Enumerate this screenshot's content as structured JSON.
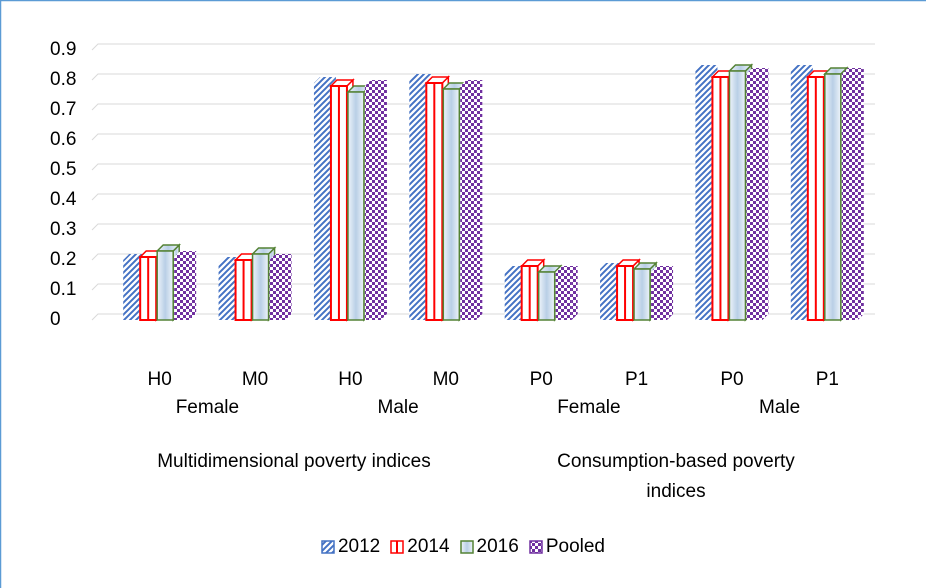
{
  "chart_data": {
    "type": "bar3d",
    "categories": [
      "H0",
      "M0",
      "H0",
      "M0",
      "P0",
      "P1",
      "P0",
      "P1"
    ],
    "category_level2": [
      "Female",
      "Male",
      "Female",
      "Male"
    ],
    "category_level3": [
      "Multidimensional poverty indices",
      "Consumption-based poverty indices"
    ],
    "series": [
      {
        "name": "2012",
        "color": "#4472c4",
        "values": [
          0.2,
          0.19,
          0.79,
          0.8,
          0.16,
          0.17,
          0.83,
          0.83
        ]
      },
      {
        "name": "2014",
        "color": "#ff0000",
        "values": [
          0.21,
          0.2,
          0.78,
          0.79,
          0.18,
          0.18,
          0.81,
          0.81
        ]
      },
      {
        "name": "2016",
        "color": "#548235",
        "values": [
          0.23,
          0.22,
          0.76,
          0.77,
          0.16,
          0.17,
          0.83,
          0.82
        ]
      },
      {
        "name": "Pooled",
        "color": "#7030a0",
        "values": [
          0.21,
          0.2,
          0.78,
          0.78,
          0.16,
          0.16,
          0.82,
          0.82
        ]
      }
    ],
    "ylim": [
      0,
      0.9
    ],
    "yticks": [
      0,
      0.1,
      0.2,
      0.3,
      0.4,
      0.5,
      0.6,
      0.7,
      0.8,
      0.9
    ],
    "grid": true
  }
}
